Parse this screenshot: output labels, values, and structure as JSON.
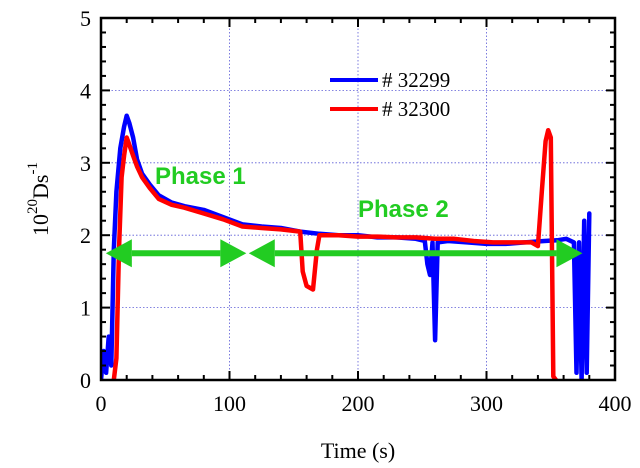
{
  "chart_data": {
    "type": "line",
    "title": "",
    "xlabel": "Time (s)",
    "ylabel": {
      "base": "10",
      "exp": "20",
      "unit": "Ds",
      "unit_exp": "-1"
    },
    "xlim": [
      0,
      400
    ],
    "ylim": [
      0,
      5
    ],
    "xticks": [
      0,
      100,
      200,
      300,
      400
    ],
    "yticks": [
      0,
      1,
      2,
      3,
      4,
      5
    ],
    "grid": true,
    "legend_position": "top-right",
    "series": [
      {
        "name": "# 32299",
        "color": "#0000ff",
        "points": [
          [
            0,
            0
          ],
          [
            2,
            0.4
          ],
          [
            4,
            0.1
          ],
          [
            6,
            0.6
          ],
          [
            8,
            0.2
          ],
          [
            10,
            1.8
          ],
          [
            12,
            2.6
          ],
          [
            15,
            3.2
          ],
          [
            18,
            3.5
          ],
          [
            20,
            3.65
          ],
          [
            22,
            3.55
          ],
          [
            25,
            3.35
          ],
          [
            28,
            3.05
          ],
          [
            32,
            2.85
          ],
          [
            38,
            2.7
          ],
          [
            45,
            2.55
          ],
          [
            55,
            2.45
          ],
          [
            65,
            2.4
          ],
          [
            80,
            2.35
          ],
          [
            95,
            2.25
          ],
          [
            110,
            2.15
          ],
          [
            125,
            2.12
          ],
          [
            140,
            2.1
          ],
          [
            155,
            2.05
          ],
          [
            170,
            2.02
          ],
          [
            185,
            2.0
          ],
          [
            200,
            2.0
          ],
          [
            215,
            1.97
          ],
          [
            230,
            1.97
          ],
          [
            245,
            1.95
          ],
          [
            252,
            1.92
          ],
          [
            254,
            1.6
          ],
          [
            256,
            1.45
          ],
          [
            258,
            1.9
          ],
          [
            260,
            0.55
          ],
          [
            262,
            1.9
          ],
          [
            270,
            1.92
          ],
          [
            285,
            1.9
          ],
          [
            300,
            1.88
          ],
          [
            315,
            1.88
          ],
          [
            330,
            1.9
          ],
          [
            345,
            1.92
          ],
          [
            355,
            1.93
          ],
          [
            362,
            1.95
          ],
          [
            368,
            1.9
          ],
          [
            370,
            0.1
          ],
          [
            372,
            1.9
          ],
          [
            374,
            0.0
          ],
          [
            376,
            2.2
          ],
          [
            378,
            0.1
          ],
          [
            380,
            2.3
          ]
        ]
      },
      {
        "name": "# 32300",
        "color": "#ff0000",
        "points": [
          [
            10,
            0
          ],
          [
            12,
            0.3
          ],
          [
            14,
            1.8
          ],
          [
            16,
            2.8
          ],
          [
            18,
            3.1
          ],
          [
            20,
            3.35
          ],
          [
            22,
            3.25
          ],
          [
            25,
            3.1
          ],
          [
            28,
            2.95
          ],
          [
            32,
            2.8
          ],
          [
            38,
            2.65
          ],
          [
            45,
            2.5
          ],
          [
            55,
            2.42
          ],
          [
            65,
            2.38
          ],
          [
            80,
            2.3
          ],
          [
            95,
            2.22
          ],
          [
            110,
            2.12
          ],
          [
            125,
            2.1
          ],
          [
            140,
            2.08
          ],
          [
            155,
            2.05
          ],
          [
            157,
            1.5
          ],
          [
            160,
            1.3
          ],
          [
            165,
            1.25
          ],
          [
            168,
            1.8
          ],
          [
            170,
            2.0
          ],
          [
            185,
            2.0
          ],
          [
            200,
            1.98
          ],
          [
            215,
            1.98
          ],
          [
            230,
            1.97
          ],
          [
            245,
            1.97
          ],
          [
            260,
            1.95
          ],
          [
            275,
            1.95
          ],
          [
            290,
            1.92
          ],
          [
            305,
            1.9
          ],
          [
            320,
            1.9
          ],
          [
            335,
            1.9
          ],
          [
            340,
            1.85
          ],
          [
            343,
            2.6
          ],
          [
            346,
            3.3
          ],
          [
            348,
            3.45
          ],
          [
            350,
            3.35
          ],
          [
            352,
            0.05
          ],
          [
            354,
            0.0
          ]
        ]
      }
    ],
    "annotations": {
      "phase1": {
        "text": "Phase 1",
        "color": "#22cc22"
      },
      "phase2": {
        "text": "Phase 2",
        "color": "#22cc22"
      },
      "arrow1_range": [
        10,
        110
      ],
      "arrow2_range": [
        115,
        370
      ],
      "arrow_y": 1.75
    }
  }
}
